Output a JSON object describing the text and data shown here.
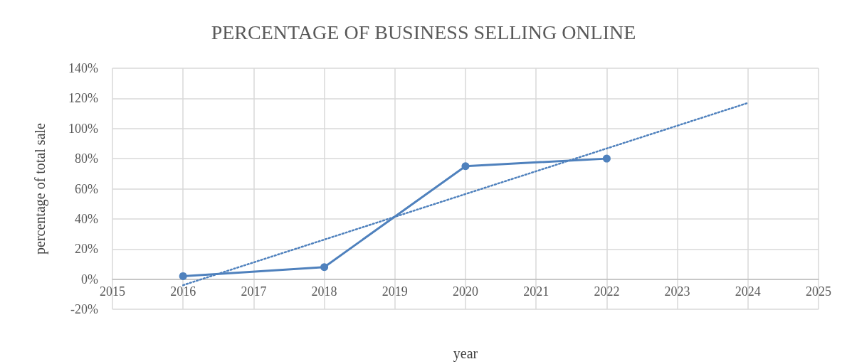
{
  "chart_data": {
    "type": "line",
    "title": "PERCENTAGE OF BUSINESS SELLING ONLINE",
    "xlabel": "year",
    "ylabel": "percentage of total sale",
    "x": [
      2016,
      2018,
      2020,
      2022
    ],
    "series": [
      {
        "color": "#4f81bd",
        "values": [
          2,
          8,
          75,
          80
        ],
        "marker": "circle",
        "line_style": "solid"
      },
      {
        "type": "line",
        "color": "#4f81bd",
        "x": [
          2016,
          2024
        ],
        "values": [
          -4,
          117
        ],
        "marker": "none",
        "line_style": "dotted"
      }
    ],
    "xlim": [
      2015,
      2025
    ],
    "xticks": [
      2015,
      2016,
      2017,
      2018,
      2019,
      2020,
      2021,
      2022,
      2023,
      2024,
      2025
    ],
    "ylim": [
      -20,
      140
    ],
    "yticks": [
      {
        "value": -20,
        "label": "-20%"
      },
      {
        "value": 0,
        "label": "0%"
      },
      {
        "value": 20,
        "label": "20%"
      },
      {
        "value": 40,
        "label": "40%"
      },
      {
        "value": 60,
        "label": "60%"
      },
      {
        "value": 80,
        "label": "80%"
      },
      {
        "value": 100,
        "label": "100%"
      },
      {
        "value": 120,
        "label": "120%"
      },
      {
        "value": 140,
        "label": "140%"
      }
    ],
    "grid": true
  }
}
